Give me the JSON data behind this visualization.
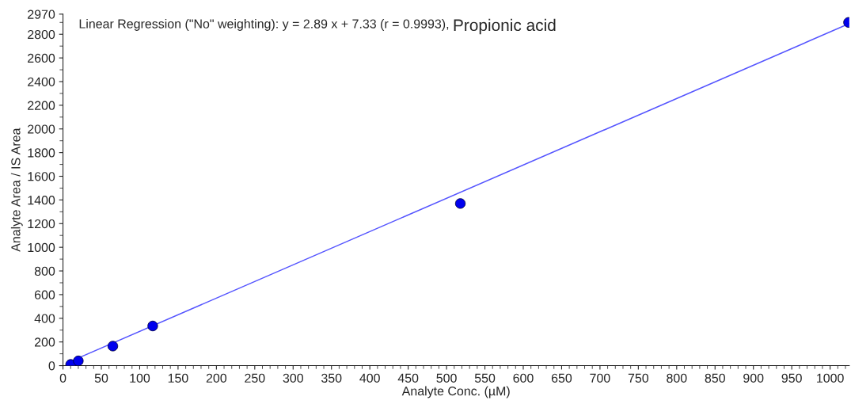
{
  "chart_data": {
    "type": "scatter",
    "xlabel": "Analyte Conc. (µM)",
    "ylabel": "Analyte Area / IS Area",
    "annotations": [
      "Linear Regression (\"No\" weighting): y = 2.89 x + 7.33 (r = 0.9993), ",
      "Propionic acid"
    ],
    "series": [
      {
        "color": "#0000ee",
        "marker": "circle",
        "x": [
          10,
          20,
          65,
          117,
          518,
          1024
        ],
        "values": [
          10,
          40,
          165,
          335,
          1370,
          2900
        ]
      },
      {
        "type": "line",
        "color": "#5555ff",
        "marker": "none",
        "line_style": "solid",
        "x": [
          10,
          1025
        ],
        "values": [
          36,
          2890
        ]
      }
    ],
    "xlim": [
      0,
      1025
    ],
    "ylim": [
      0,
      2970
    ],
    "xticks": [
      0,
      50,
      100,
      150,
      200,
      250,
      300,
      350,
      400,
      450,
      500,
      550,
      600,
      650,
      700,
      750,
      800,
      850,
      900,
      950,
      1000
    ],
    "yticks": [
      0,
      200,
      400,
      600,
      800,
      1000,
      1200,
      1400,
      1600,
      1800,
      2000,
      2200,
      2400,
      2600,
      2800,
      2970
    ],
    "grid": false,
    "legend": false
  }
}
